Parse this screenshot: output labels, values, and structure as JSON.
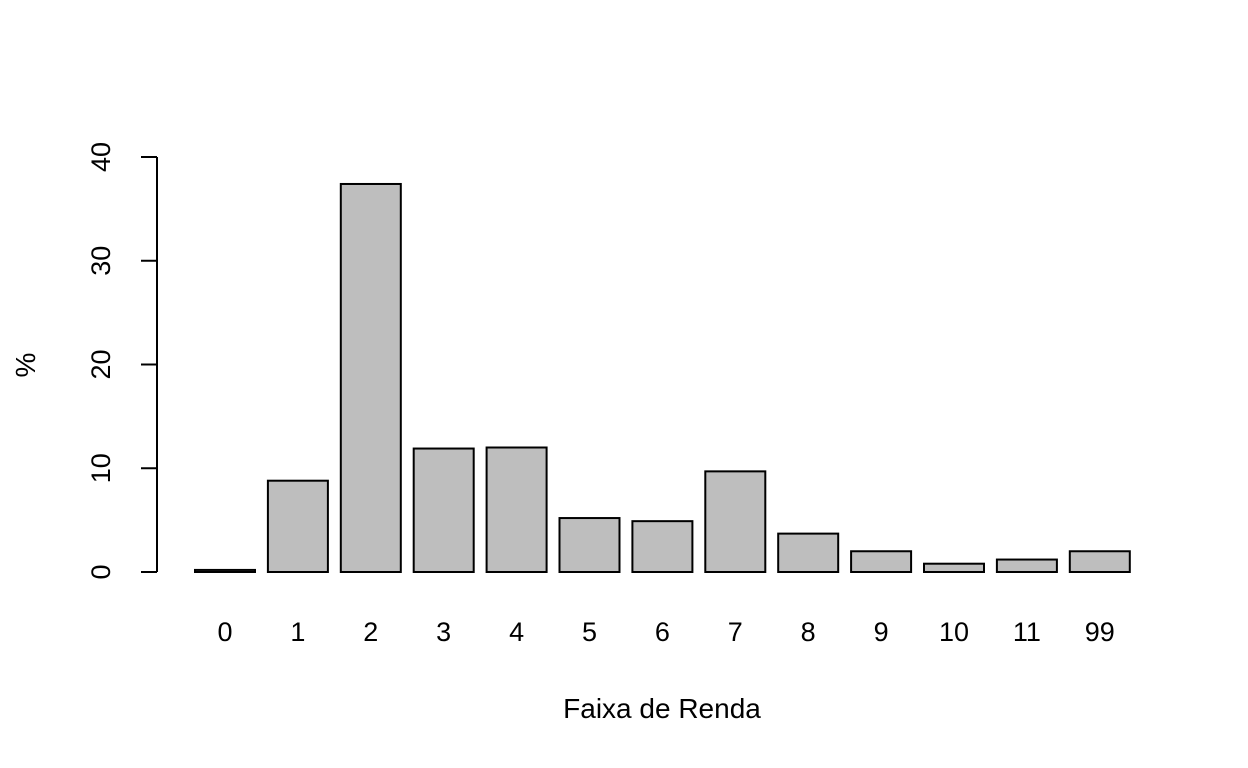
{
  "chart_data": {
    "type": "bar",
    "title": "",
    "xlabel": "Faixa de Renda",
    "ylabel": "%",
    "categories": [
      "0",
      "1",
      "2",
      "3",
      "4",
      "5",
      "6",
      "7",
      "8",
      "9",
      "10",
      "11",
      "99"
    ],
    "values": [
      0.2,
      8.8,
      37.4,
      11.9,
      12.0,
      5.2,
      4.9,
      9.7,
      3.7,
      2.0,
      0.8,
      1.2,
      2.0
    ],
    "ylim": [
      0,
      40
    ],
    "yticks": [
      "0",
      "10",
      "20",
      "30",
      "40"
    ],
    "bar_color": "#bebebe",
    "bar_border_color": "#000000",
    "grid": false,
    "legend": "none"
  }
}
